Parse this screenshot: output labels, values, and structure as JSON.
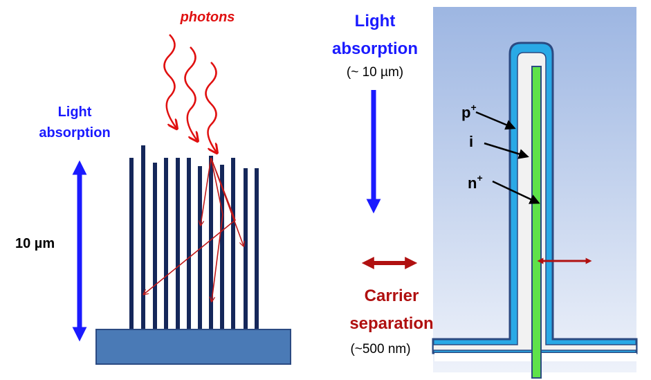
{
  "left": {
    "photons": "photons",
    "absorption_label": [
      "Light",
      "absorption"
    ],
    "length_label": "10 µm"
  },
  "center": {
    "absorption_title": [
      "Light",
      "absorption"
    ],
    "absorption_scale": "(~ 10 µm)",
    "separation_title": [
      "Carrier",
      "separation"
    ],
    "separation_scale": "(~500 nm)"
  },
  "right": {
    "layers": [
      {
        "label": "p",
        "superscript": "+"
      },
      {
        "label": "i"
      },
      {
        "label": "n",
        "superscript": "+"
      }
    ]
  }
}
